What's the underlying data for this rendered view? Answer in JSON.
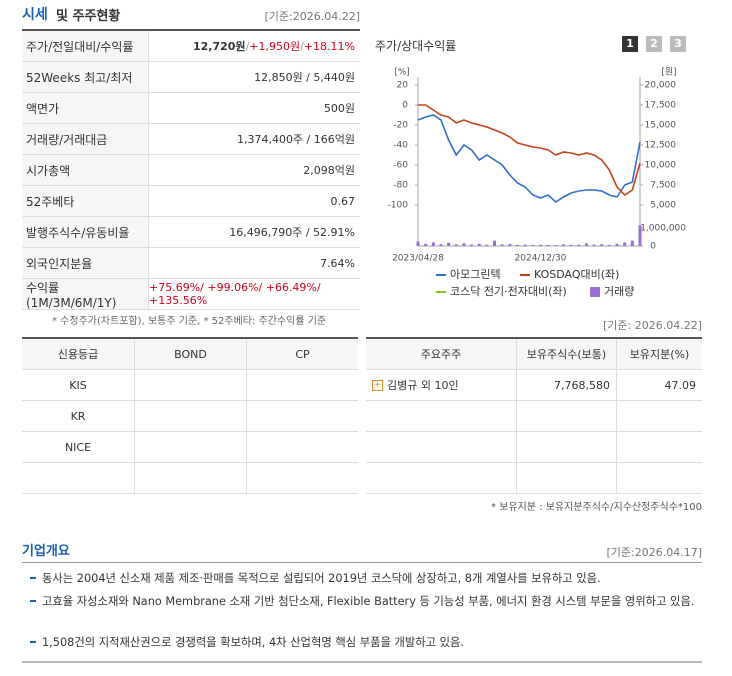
{
  "header": {
    "title": [
      "시세",
      "및 주주현황"
    ],
    "date": "[기준:2026.04.22]"
  },
  "summary": {
    "rows": [
      {
        "label": "주가/전일대비/수익률",
        "parts": [
          "12,720원",
          " / ",
          "+1,950원",
          " / ",
          "+18.11%"
        ]
      },
      {
        "label": "52Weeks 최고/최저",
        "parts": [
          "12,850원 / 5,440원"
        ]
      },
      {
        "label": "액면가",
        "parts": [
          "500원"
        ]
      },
      {
        "label": "거래량/거래대금",
        "parts": [
          "1,374,400주 / 166억원"
        ]
      },
      {
        "label": "시가총액",
        "parts": [
          "2,098억원"
        ]
      },
      {
        "label": "52주베타",
        "parts": [
          "0.67"
        ]
      },
      {
        "label": "발행주식수/유동비율",
        "parts": [
          "16,496,790주 / 52.91%"
        ]
      },
      {
        "label": "외국인지분율",
        "parts": [
          "7.64%"
        ]
      },
      {
        "label": "수익률 (1M/3M/6M/1Y)",
        "parts": [
          "+75.69%/ +99.06%/ +66.49%/ +135.56%"
        ]
      }
    ],
    "note": "* 수정주가(차트포함), 보통주 기준, * 52주베타: 주간수익률 기준"
  },
  "chart_data": {
    "type": "line",
    "title": "주가/상대수익률",
    "tabs": [
      "1",
      "2",
      "3"
    ],
    "y_unit": "[%]",
    "y2_unit": "[원]",
    "categories": [
      "2023/04/28",
      null,
      null,
      null,
      null,
      null,
      null,
      null,
      null,
      null,
      null,
      null,
      null,
      null,
      null,
      null,
      "2024/12/30",
      null,
      null,
      null,
      null,
      null,
      null,
      null,
      null,
      null,
      null,
      null,
      null,
      null
    ],
    "ylim": [
      -100,
      20
    ],
    "yticks": [
      20,
      0,
      -20,
      -40,
      -60,
      -80,
      -100
    ],
    "y2lim": [
      5000,
      20000
    ],
    "y2ticks": [
      {
        "value": 20000,
        "label": "20,000"
      },
      {
        "value": 17500,
        "label": "17,500"
      },
      {
        "value": 15000,
        "label": "15,000"
      },
      {
        "value": 12500,
        "label": "12,500"
      },
      {
        "value": 10000,
        "label": "10,000"
      },
      {
        "value": 7500,
        "label": "7,500"
      },
      {
        "value": 5000,
        "label": "5,000"
      }
    ],
    "volume_ylim": [
      0,
      1000000
    ],
    "volume_yticks": [
      {
        "value": 1000000,
        "label": "1,000,000"
      },
      0
    ],
    "series": [
      {
        "name": "아모그린텍",
        "color": "#2f6fcf",
        "values": [
          -15,
          -12,
          -10,
          -15,
          -35,
          -50,
          -40,
          -45,
          -55,
          -50,
          -55,
          -60,
          -70,
          -78,
          -82,
          -90,
          -93,
          -90,
          -97,
          -92,
          -88,
          -86,
          -85,
          -85,
          -86,
          -90,
          -92,
          -80,
          -77,
          -37
        ]
      },
      {
        "name": "KOSDAQ대비(좌)",
        "color": "#c8411b",
        "values": [
          0,
          0,
          -5,
          -10,
          -12,
          -18,
          -15,
          -18,
          -20,
          -22,
          -25,
          -28,
          -32,
          -38,
          -40,
          -42,
          -43,
          -45,
          -50,
          -47,
          -48,
          -50,
          -48,
          -50,
          -55,
          -65,
          -82,
          -90,
          -85,
          -58
        ]
      },
      {
        "name": "코스닥 전기·전자대비(좌)",
        "color": "#8bbf2a",
        "values": [
          null,
          null,
          null,
          null,
          null,
          null,
          null,
          null,
          null,
          null,
          null,
          null,
          null,
          null,
          null,
          null,
          null,
          null,
          null,
          null,
          null,
          null,
          null,
          null,
          null,
          null,
          null,
          null,
          null,
          null
        ]
      },
      {
        "name": "거래량",
        "color": "#9a6fd6",
        "axis": "volume",
        "values": [
          250000,
          120000,
          200000,
          100000,
          180000,
          90000,
          150000,
          80000,
          130000,
          70000,
          300000,
          90000,
          110000,
          60000,
          80000,
          50000,
          70000,
          60000,
          50000,
          90000,
          60000,
          70000,
          150000,
          80000,
          100000,
          60000,
          120000,
          200000,
          300000,
          1150000
        ]
      }
    ],
    "date": "[기준: 2026.04.22]"
  },
  "credit": {
    "header": [
      "신용등급",
      "BOND",
      "CP"
    ],
    "rows": [
      [
        "KIS"
      ],
      [
        "KR"
      ],
      [
        "NICE"
      ]
    ]
  },
  "holders": {
    "header": [
      "주요주주",
      "보유주식수(보통)",
      "보유지분(%)"
    ],
    "rows": [
      [
        "김병규 외 10인",
        "7,768,580",
        "47.09"
      ]
    ],
    "note": "* 보유지분 : 보유지분주식수/지수산정주식수*100"
  },
  "overview": {
    "title": "기업개요",
    "date": "[기준:2026.04.17]",
    "items": [
      "동사는 2004년 신소재 제품 제조·판매를 목적으로 설립되어 2019년 코스닥에 상장하고, 8개 계열사를 보유하고 있음.",
      "고효율 자성소재와 Nano Membrane 소재 기반 첨단소재, Flexible Battery 등 기능성 부품, 에너지 환경 시스템 부문을 영위하고 있음.",
      "1,508건의 지적재산권으로 경쟁력을 확보하며, 4차 산업혁명 핵심 부품을 개발하고 있음."
    ]
  }
}
